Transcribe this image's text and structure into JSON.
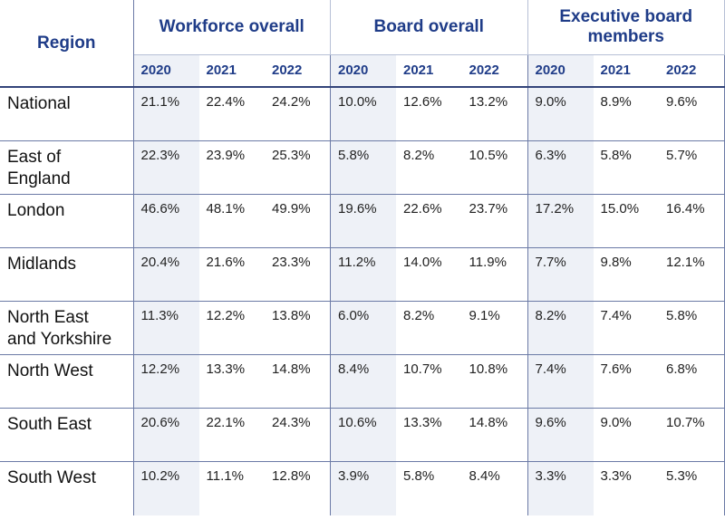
{
  "table": {
    "region_header": "Region",
    "groups": [
      {
        "label": "Workforce overall"
      },
      {
        "label": "Board overall"
      },
      {
        "label": "Executive board members"
      }
    ],
    "years": [
      "2020",
      "2021",
      "2022",
      "2020",
      "2021",
      "2022",
      "2020",
      "2021",
      "2022"
    ],
    "rows": [
      {
        "region": "National",
        "values": [
          "21.1%",
          "22.4%",
          "24.2%",
          "10.0%",
          "12.6%",
          "13.2%",
          "9.0%",
          "8.9%",
          "9.6%"
        ]
      },
      {
        "region": "East of England",
        "values": [
          "22.3%",
          "23.9%",
          "25.3%",
          "5.8%",
          "8.2%",
          "10.5%",
          "6.3%",
          "5.8%",
          "5.7%"
        ]
      },
      {
        "region": "London",
        "values": [
          "46.6%",
          "48.1%",
          "49.9%",
          "19.6%",
          "22.6%",
          "23.7%",
          "17.2%",
          "15.0%",
          "16.4%"
        ]
      },
      {
        "region": "Midlands",
        "values": [
          "20.4%",
          "21.6%",
          "23.3%",
          "11.2%",
          "14.0%",
          "11.9%",
          "7.7%",
          "9.8%",
          "12.1%"
        ]
      },
      {
        "region": "North East and Yorkshire",
        "values": [
          "11.3%",
          "12.2%",
          "13.8%",
          "6.0%",
          "8.2%",
          "9.1%",
          "8.2%",
          "7.4%",
          "5.8%"
        ]
      },
      {
        "region": "North West",
        "values": [
          "12.2%",
          "13.3%",
          "14.8%",
          "8.4%",
          "10.7%",
          "10.8%",
          "7.4%",
          "7.6%",
          "6.8%"
        ]
      },
      {
        "region": "South East",
        "values": [
          "20.6%",
          "22.1%",
          "24.3%",
          "10.6%",
          "13.3%",
          "14.8%",
          "9.6%",
          "9.0%",
          "10.7%"
        ]
      },
      {
        "region": "South West",
        "values": [
          "10.2%",
          "11.1%",
          "12.8%",
          "3.9%",
          "5.8%",
          "8.4%",
          "3.3%",
          "3.3%",
          "5.3%"
        ]
      }
    ],
    "colors": {
      "header_text": "#1f3c88",
      "shaded_column": "#eef1f7",
      "rule": "#33447a"
    }
  }
}
